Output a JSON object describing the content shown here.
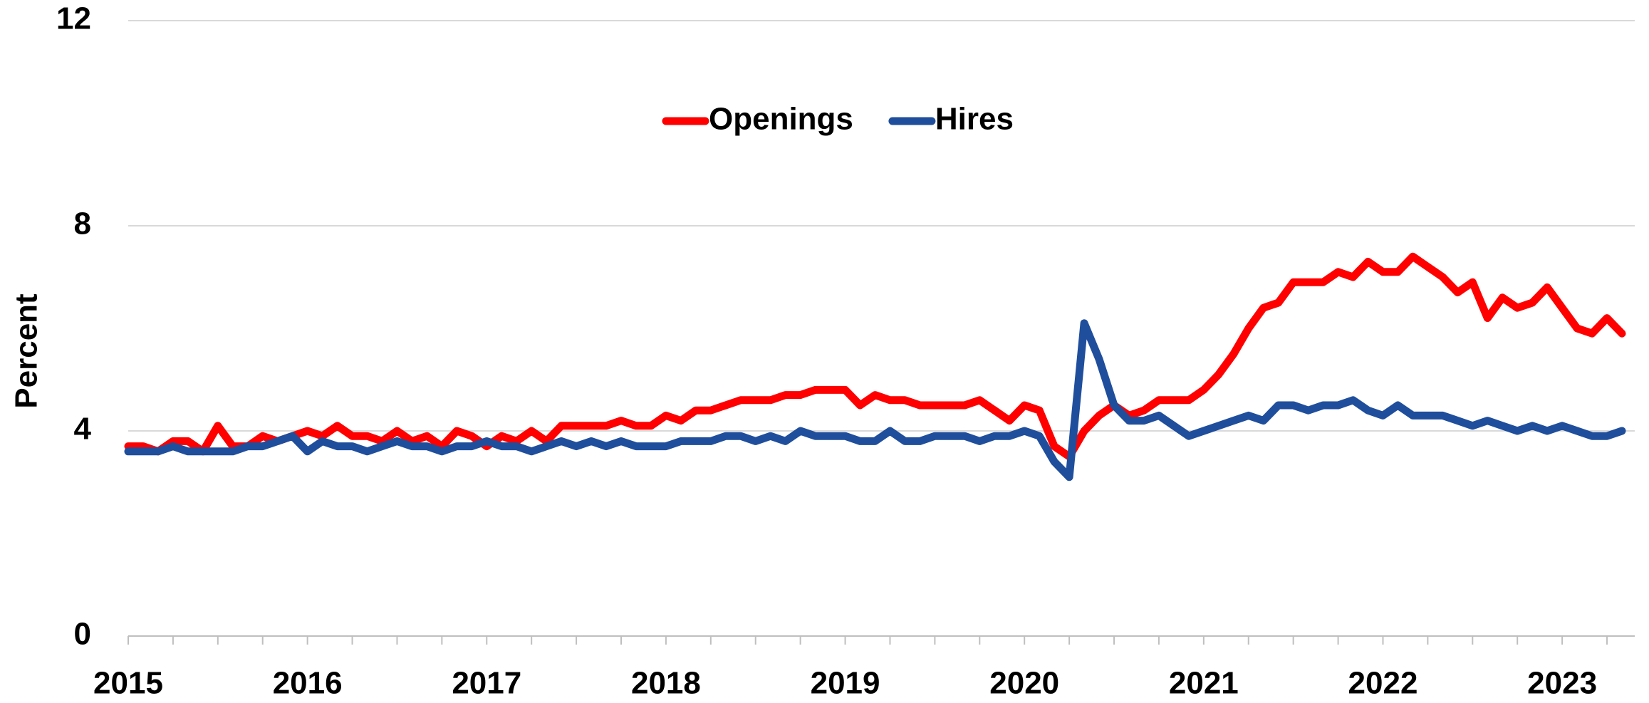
{
  "chart_data": {
    "type": "line",
    "categories": [
      "2015",
      null,
      null,
      null,
      null,
      null,
      null,
      null,
      null,
      null,
      null,
      null,
      "2016",
      null,
      null,
      null,
      null,
      null,
      null,
      null,
      null,
      null,
      null,
      null,
      "2017",
      null,
      null,
      null,
      null,
      null,
      null,
      null,
      null,
      null,
      null,
      null,
      "2018",
      null,
      null,
      null,
      null,
      null,
      null,
      null,
      null,
      null,
      null,
      null,
      "2019",
      null,
      null,
      null,
      null,
      null,
      null,
      null,
      null,
      null,
      null,
      null,
      "2020",
      null,
      null,
      null,
      null,
      null,
      null,
      null,
      null,
      null,
      null,
      null,
      "2021",
      null,
      null,
      null,
      null,
      null,
      null,
      null,
      null,
      null,
      null,
      null,
      "2022",
      null,
      null,
      null,
      null,
      null,
      null,
      null,
      null,
      null,
      null,
      null,
      "2023",
      null,
      null,
      null,
      null
    ],
    "series": [
      {
        "name": "Openings",
        "color": "#ff0000",
        "values": [
          3.7,
          3.7,
          3.6,
          3.8,
          3.8,
          3.6,
          4.1,
          3.7,
          3.7,
          3.9,
          3.8,
          3.9,
          4.0,
          3.9,
          4.1,
          3.9,
          3.9,
          3.8,
          4.0,
          3.8,
          3.9,
          3.7,
          4.0,
          3.9,
          3.7,
          3.9,
          3.8,
          4.0,
          3.8,
          4.1,
          4.1,
          4.1,
          4.1,
          4.2,
          4.1,
          4.1,
          4.3,
          4.2,
          4.4,
          4.4,
          4.5,
          4.6,
          4.6,
          4.6,
          4.7,
          4.7,
          4.8,
          4.8,
          4.8,
          4.5,
          4.7,
          4.6,
          4.6,
          4.5,
          4.5,
          4.5,
          4.5,
          4.6,
          4.4,
          4.2,
          4.5,
          4.4,
          3.7,
          3.5,
          4.0,
          4.3,
          4.5,
          4.3,
          4.4,
          4.6,
          4.6,
          4.6,
          4.8,
          5.1,
          5.5,
          6.0,
          6.4,
          6.5,
          6.9,
          6.9,
          6.9,
          7.1,
          7.0,
          7.3,
          7.1,
          7.1,
          7.4,
          7.2,
          7.0,
          6.7,
          6.9,
          6.2,
          6.6,
          6.4,
          6.5,
          6.8,
          6.4,
          6.0,
          5.9,
          6.2,
          5.9
        ]
      },
      {
        "name": "Hires",
        "color": "#1f4e9c",
        "values": [
          3.6,
          3.6,
          3.6,
          3.7,
          3.6,
          3.6,
          3.6,
          3.6,
          3.7,
          3.7,
          3.8,
          3.9,
          3.6,
          3.8,
          3.7,
          3.7,
          3.6,
          3.7,
          3.8,
          3.7,
          3.7,
          3.6,
          3.7,
          3.7,
          3.8,
          3.7,
          3.7,
          3.6,
          3.7,
          3.8,
          3.7,
          3.8,
          3.7,
          3.8,
          3.7,
          3.7,
          3.7,
          3.8,
          3.8,
          3.8,
          3.9,
          3.9,
          3.8,
          3.9,
          3.8,
          4.0,
          3.9,
          3.9,
          3.9,
          3.8,
          3.8,
          4.0,
          3.8,
          3.8,
          3.9,
          3.9,
          3.9,
          3.8,
          3.9,
          3.9,
          4.0,
          3.9,
          3.4,
          3.1,
          6.1,
          5.4,
          4.5,
          4.2,
          4.2,
          4.3,
          4.1,
          3.9,
          4.0,
          4.1,
          4.2,
          4.3,
          4.2,
          4.5,
          4.5,
          4.4,
          4.5,
          4.5,
          4.6,
          4.4,
          4.3,
          4.5,
          4.3,
          4.3,
          4.3,
          4.2,
          4.1,
          4.2,
          4.1,
          4.0,
          4.1,
          4.0,
          4.1,
          4.0,
          3.9,
          3.9,
          4.0
        ]
      }
    ],
    "y_label": "Percent",
    "ylim": [
      0,
      12
    ],
    "yticks": [
      0,
      4,
      8,
      12
    ],
    "grid": true,
    "legend": "top"
  }
}
